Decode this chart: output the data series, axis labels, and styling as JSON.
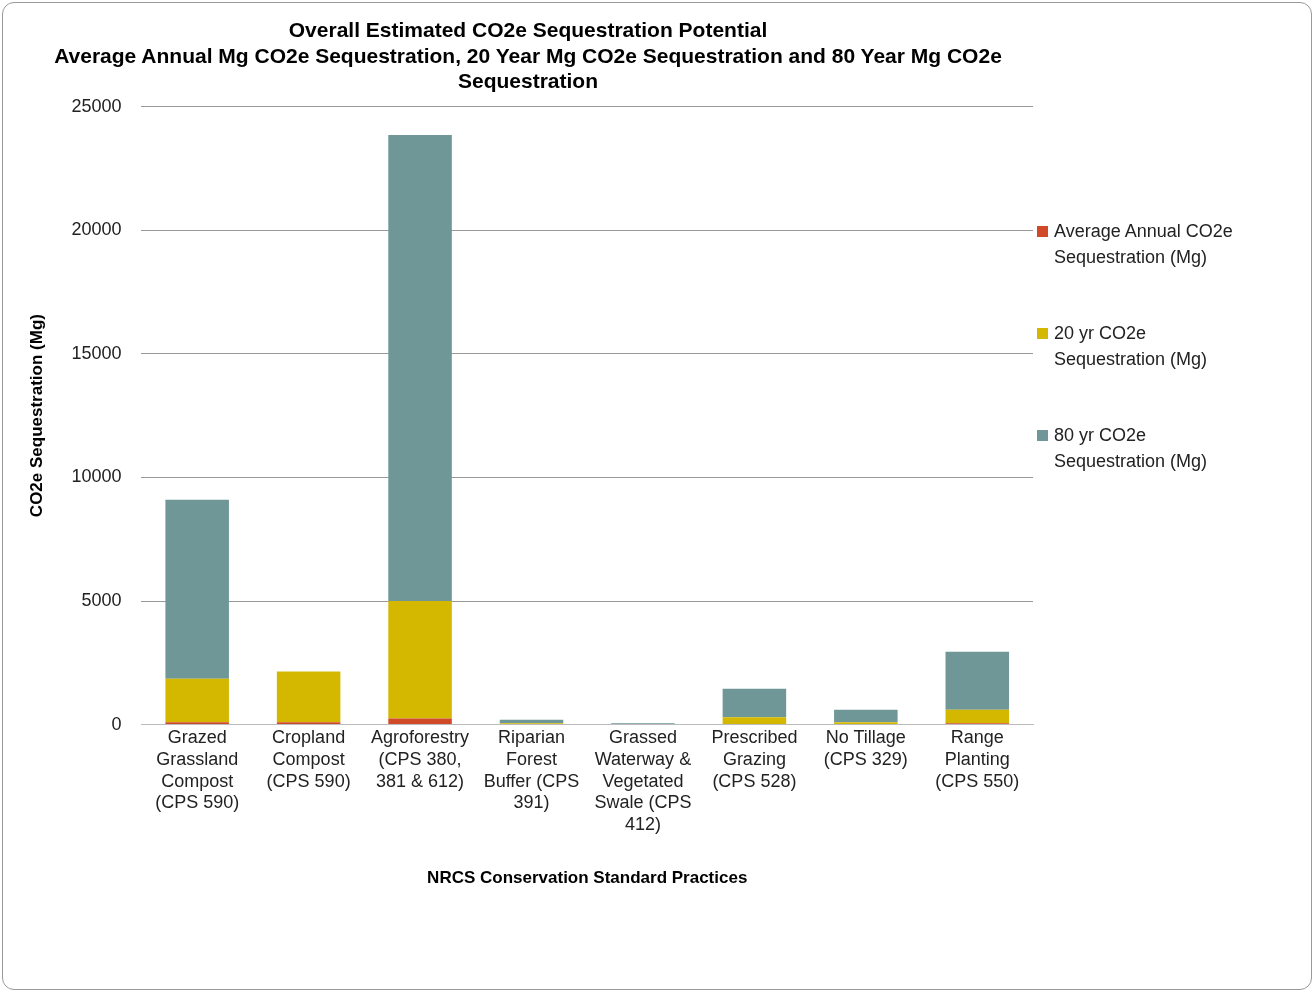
{
  "chart_data": {
    "type": "bar",
    "title": "Overall Estimated CO2e Sequestration Potential",
    "subtitle": "Average Annual Mg CO2e Sequestration, 20 Year Mg CO2e Sequestration and 80 Year Mg CO2e Sequestration",
    "xlabel": "NRCS Conservation Standard Practices",
    "ylabel": "CO2e Sequestration (Mg)",
    "categories": [
      "Grazed Grassland Compost (CPS 590)",
      "Cropland Compost (CPS 590)",
      "Agroforestry (CPS 380, 381 & 612)",
      "Riparian Forest Buffer (CPS 391)",
      "Grassed Waterway & Vegetated Swale (CPS 412)",
      "Prescribed Grazing (CPS 528)",
      "No Tillage (CPS 329)",
      "Range Planting (CPS 550)"
    ],
    "stacked": true,
    "series": [
      {
        "name": "Average Annual CO2e Sequestration (Mg)",
        "color": "#d04a2a",
        "values": [
          100,
          100,
          250,
          0,
          0,
          0,
          0,
          50
        ]
      },
      {
        "name": "20 yr CO2e Sequestration (Mg)",
        "color": "#d4b800",
        "values": [
          1750,
          2050,
          4750,
          50,
          0,
          300,
          100,
          550
        ]
      },
      {
        "name": "80 yr CO2e Sequestration (Mg)",
        "color": "#6f9797",
        "values": [
          7250,
          0,
          18850,
          150,
          50,
          1150,
          500,
          2350
        ]
      }
    ],
    "ylim": [
      0,
      25000
    ],
    "yticks": [
      0,
      5000,
      10000,
      15000,
      20000,
      25000
    ],
    "grid": "y",
    "legend": "right"
  }
}
